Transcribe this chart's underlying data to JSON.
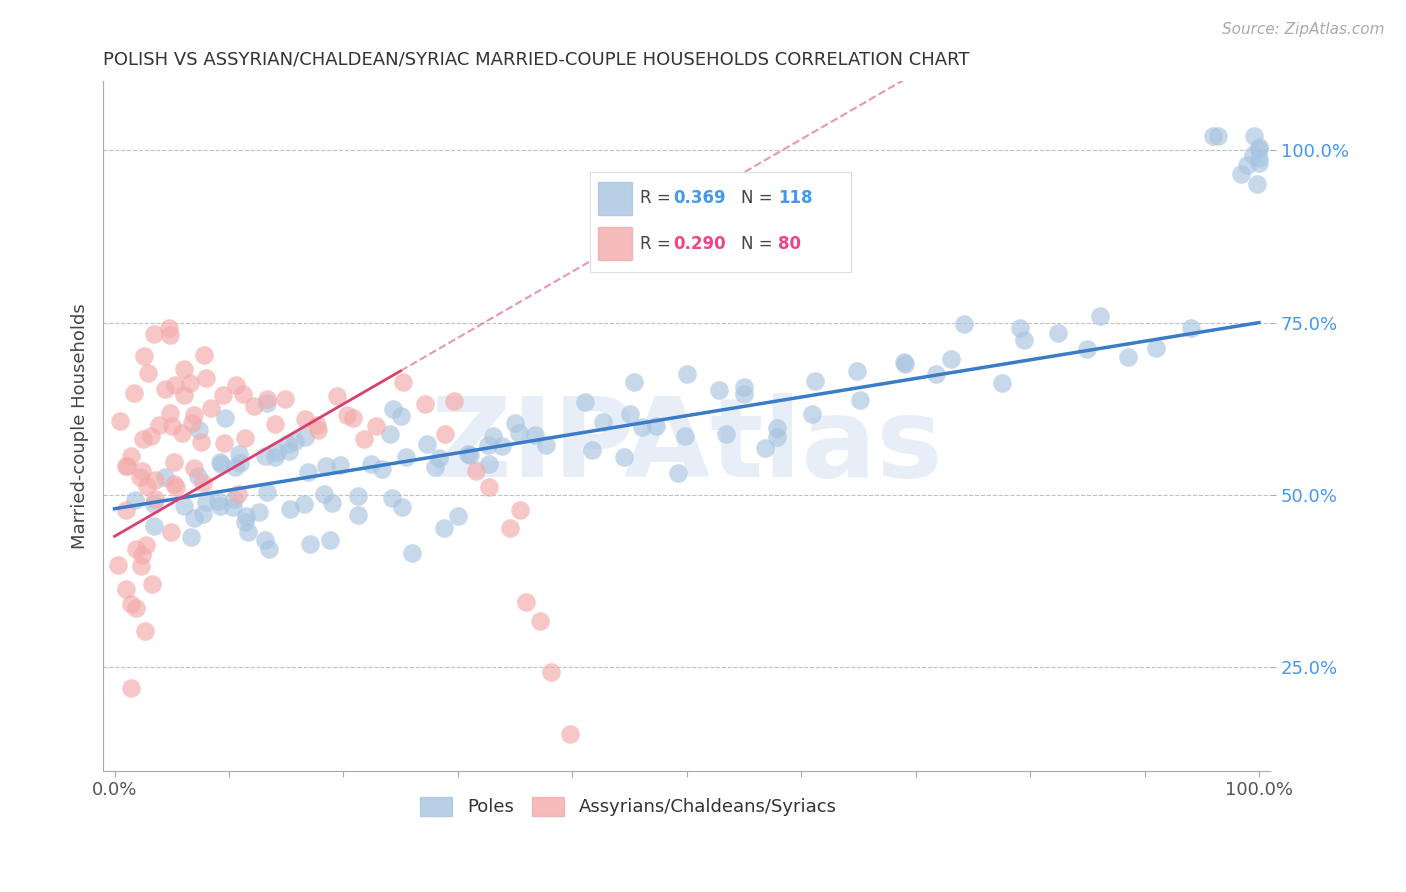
{
  "title": "POLISH VS ASSYRIAN/CHALDEAN/SYRIAC MARRIED-COUPLE HOUSEHOLDS CORRELATION CHART",
  "source": "Source: ZipAtlas.com",
  "ylabel": "Married-couple Households",
  "legend_label_blue": "Poles",
  "legend_label_pink": "Assyrians/Chaldeans/Syriacs",
  "blue_color": "#A8C4E0",
  "pink_color": "#F4AAAA",
  "blue_line_color": "#3B7CC9",
  "pink_line_color": "#D94070",
  "watermark": "ZIPAtlas",
  "blue_R": 0.369,
  "blue_N": 118,
  "pink_R": 0.29,
  "pink_N": 80,
  "blue_scatter_x": [
    0.02,
    0.03,
    0.04,
    0.05,
    0.05,
    0.06,
    0.06,
    0.07,
    0.07,
    0.08,
    0.08,
    0.08,
    0.09,
    0.09,
    0.09,
    0.1,
    0.1,
    0.1,
    0.1,
    0.11,
    0.11,
    0.11,
    0.12,
    0.12,
    0.12,
    0.13,
    0.13,
    0.13,
    0.14,
    0.14,
    0.14,
    0.15,
    0.15,
    0.15,
    0.16,
    0.16,
    0.17,
    0.17,
    0.18,
    0.18,
    0.19,
    0.19,
    0.2,
    0.2,
    0.21,
    0.21,
    0.22,
    0.22,
    0.23,
    0.23,
    0.24,
    0.24,
    0.25,
    0.25,
    0.26,
    0.26,
    0.27,
    0.28,
    0.28,
    0.29,
    0.3,
    0.3,
    0.31,
    0.32,
    0.33,
    0.34,
    0.35,
    0.35,
    0.36,
    0.38,
    0.39,
    0.4,
    0.41,
    0.42,
    0.44,
    0.45,
    0.46,
    0.47,
    0.48,
    0.49,
    0.5,
    0.51,
    0.52,
    0.53,
    0.54,
    0.55,
    0.56,
    0.57,
    0.58,
    0.6,
    0.61,
    0.63,
    0.65,
    0.67,
    0.69,
    0.71,
    0.73,
    0.75,
    0.77,
    0.79,
    0.81,
    0.83,
    0.85,
    0.87,
    0.89,
    0.91,
    0.93,
    0.95,
    0.97,
    0.99,
    1.0,
    1.0,
    1.0,
    1.0,
    1.0,
    1.0,
    1.0,
    1.0
  ],
  "blue_scatter_y": [
    0.48,
    0.52,
    0.5,
    0.55,
    0.46,
    0.58,
    0.49,
    0.53,
    0.47,
    0.56,
    0.5,
    0.44,
    0.57,
    0.52,
    0.45,
    0.54,
    0.48,
    0.6,
    0.42,
    0.55,
    0.5,
    0.46,
    0.58,
    0.52,
    0.45,
    0.57,
    0.5,
    0.43,
    0.56,
    0.48,
    0.62,
    0.55,
    0.49,
    0.42,
    0.58,
    0.52,
    0.57,
    0.46,
    0.54,
    0.48,
    0.56,
    0.44,
    0.55,
    0.49,
    0.58,
    0.43,
    0.56,
    0.47,
    0.54,
    0.6,
    0.55,
    0.48,
    0.57,
    0.43,
    0.56,
    0.5,
    0.58,
    0.55,
    0.47,
    0.57,
    0.55,
    0.48,
    0.57,
    0.58,
    0.59,
    0.55,
    0.58,
    0.52,
    0.61,
    0.6,
    0.58,
    0.64,
    0.58,
    0.62,
    0.6,
    0.55,
    0.65,
    0.58,
    0.62,
    0.56,
    0.65,
    0.58,
    0.63,
    0.6,
    0.65,
    0.58,
    0.67,
    0.6,
    0.65,
    0.62,
    0.68,
    0.64,
    0.65,
    0.68,
    0.7,
    0.65,
    0.7,
    0.72,
    0.68,
    0.73,
    0.7,
    0.74,
    0.72,
    0.75,
    0.72,
    0.75,
    0.73,
    1.0,
    1.0,
    1.0,
    1.0,
    1.0,
    1.0,
    1.0,
    1.0,
    1.0,
    1.0,
    1.0
  ],
  "pink_scatter_x": [
    0.01,
    0.01,
    0.01,
    0.01,
    0.01,
    0.01,
    0.01,
    0.02,
    0.02,
    0.02,
    0.02,
    0.02,
    0.02,
    0.02,
    0.02,
    0.02,
    0.03,
    0.03,
    0.03,
    0.03,
    0.03,
    0.03,
    0.03,
    0.03,
    0.04,
    0.04,
    0.04,
    0.04,
    0.04,
    0.04,
    0.05,
    0.05,
    0.05,
    0.05,
    0.05,
    0.05,
    0.06,
    0.06,
    0.06,
    0.06,
    0.06,
    0.07,
    0.07,
    0.07,
    0.07,
    0.08,
    0.08,
    0.08,
    0.09,
    0.09,
    0.09,
    0.1,
    0.1,
    0.11,
    0.11,
    0.12,
    0.12,
    0.13,
    0.14,
    0.15,
    0.16,
    0.17,
    0.18,
    0.19,
    0.2,
    0.21,
    0.22,
    0.23,
    0.25,
    0.27,
    0.29,
    0.3,
    0.32,
    0.33,
    0.34,
    0.35,
    0.36,
    0.37,
    0.38,
    0.4
  ],
  "pink_scatter_y": [
    0.6,
    0.55,
    0.5,
    0.45,
    0.4,
    0.35,
    0.3,
    0.65,
    0.6,
    0.55,
    0.5,
    0.45,
    0.4,
    0.35,
    0.3,
    0.25,
    0.7,
    0.65,
    0.6,
    0.55,
    0.5,
    0.45,
    0.4,
    0.35,
    0.72,
    0.67,
    0.62,
    0.57,
    0.52,
    0.47,
    0.72,
    0.67,
    0.62,
    0.57,
    0.52,
    0.47,
    0.72,
    0.67,
    0.62,
    0.57,
    0.52,
    0.68,
    0.63,
    0.58,
    0.53,
    0.7,
    0.65,
    0.6,
    0.65,
    0.6,
    0.55,
    0.68,
    0.55,
    0.65,
    0.55,
    0.65,
    0.55,
    0.63,
    0.6,
    0.65,
    0.62,
    0.6,
    0.62,
    0.6,
    0.6,
    0.62,
    0.6,
    0.62,
    0.62,
    0.63,
    0.6,
    0.62,
    0.55,
    0.5,
    0.45,
    0.4,
    0.35,
    0.3,
    0.25,
    0.15
  ]
}
